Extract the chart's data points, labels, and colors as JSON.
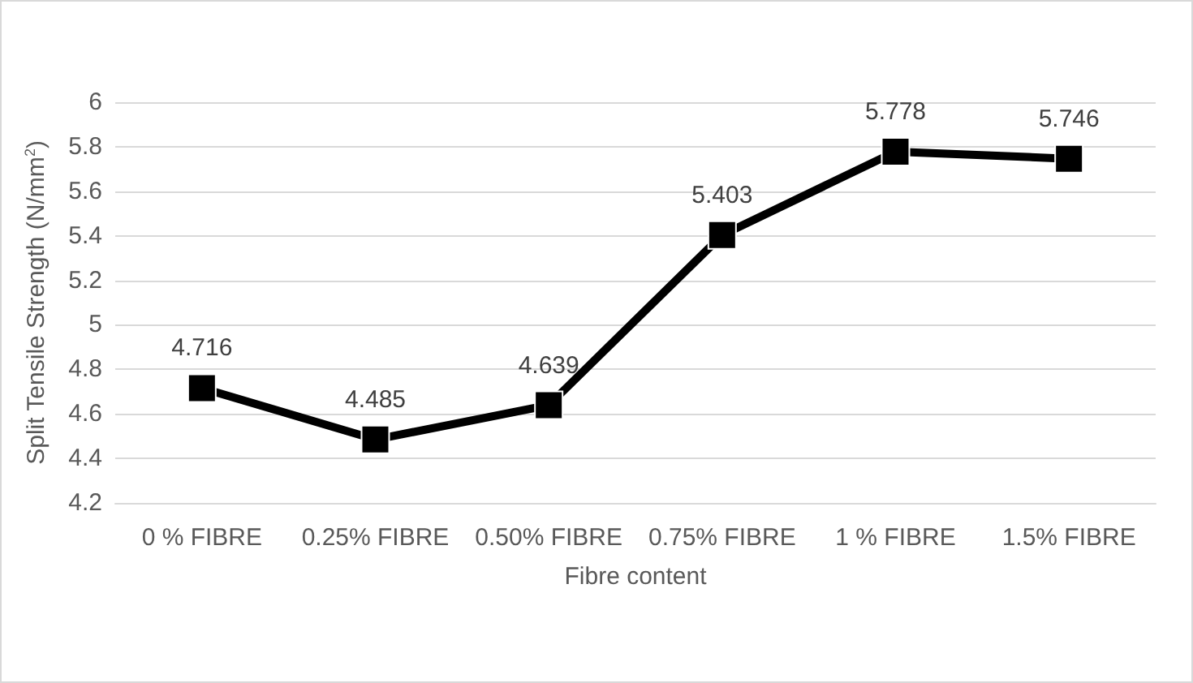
{
  "chart_data": {
    "type": "line",
    "xlabel": "Fibre content",
    "ylabel": "Split Tensile Strength (N/mm$^{2}$)",
    "categories": [
      "0 % FIBRE",
      "0.25% FIBRE",
      "0.50% FIBRE",
      "0.75% FIBRE",
      "1 % FIBRE",
      "1.5% FIBRE"
    ],
    "series": [
      {
        "color": "#000000",
        "values": [
          4.716,
          4.485,
          4.639,
          5.403,
          5.778,
          5.746
        ]
      }
    ],
    "ylim": [
      4.2,
      6
    ],
    "yticks": [
      4.2,
      4.4,
      4.6,
      4.8,
      5,
      5.2,
      5.4,
      5.6,
      5.8,
      6
    ],
    "grid": "y",
    "marker": "square",
    "line_style": "solid",
    "data_labels": true
  }
}
